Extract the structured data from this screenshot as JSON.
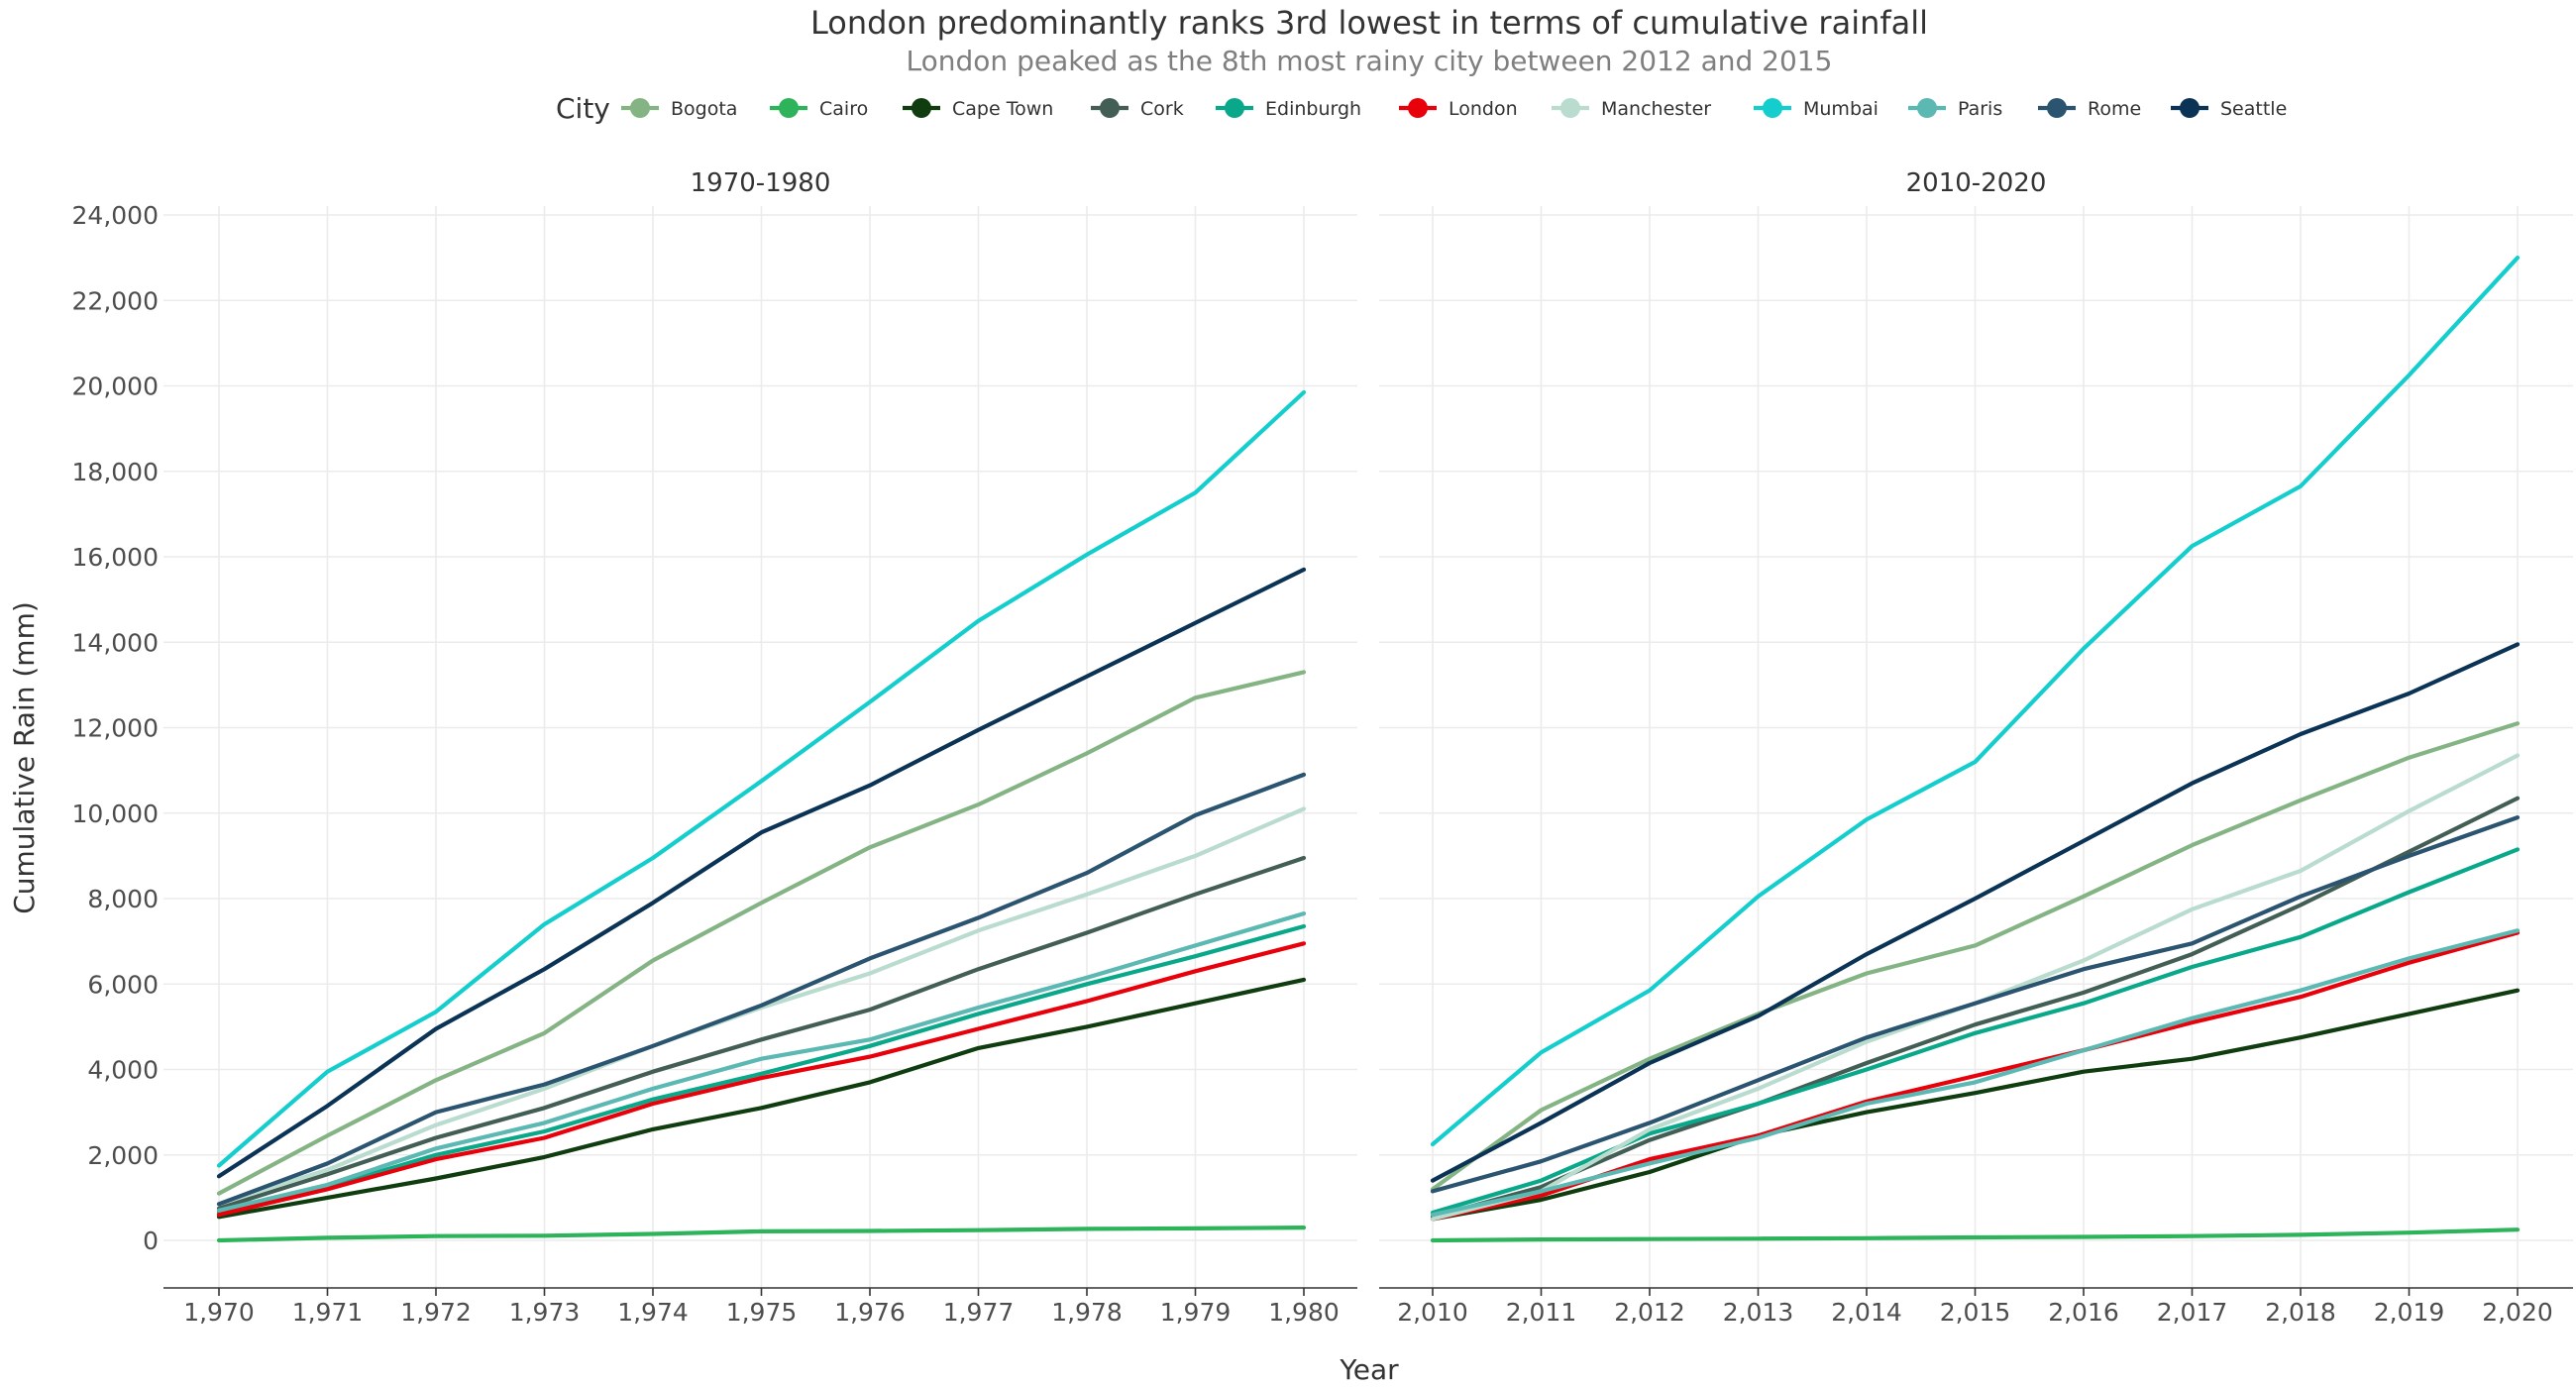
{
  "chart_data": {
    "type": "line",
    "title": "London predominantly ranks 3rd lowest in terms of cumulative rainfall",
    "subtitle": "London peaked as the 8th most rainy city between 2012 and 2015",
    "xlabel": "Year",
    "ylabel": "Cumulative Rain (mm)",
    "ylim": [
      0,
      24000
    ],
    "yticks": [
      "0",
      "2,000",
      "4,000",
      "6,000",
      "8,000",
      "10,000",
      "12,000",
      "14,000",
      "16,000",
      "18,000",
      "20,000",
      "22,000",
      "24,000"
    ],
    "grid": true,
    "legend": {
      "title": "City",
      "position": "top",
      "entries": [
        "Bogota",
        "Cairo",
        "Cape Town",
        "Cork",
        "Edinburgh",
        "London",
        "Manchester",
        "Mumbai",
        "Paris",
        "Rome",
        "Seattle"
      ]
    },
    "colors": {
      "Bogota": "#84b384",
      "Cairo": "#2db35a",
      "Cape Town": "#0f3d0f",
      "Cork": "#435e55",
      "Edinburgh": "#0aa88a",
      "London": "#e8000b",
      "Manchester": "#b9dccf",
      "Mumbai": "#14cece",
      "Paris": "#5bb8b2",
      "Rome": "#2b5470",
      "Seattle": "#0a3355"
    },
    "panels": [
      {
        "label": "1970-1980",
        "x": [
          1970,
          1971,
          1972,
          1973,
          1974,
          1975,
          1976,
          1977,
          1978,
          1979,
          1980
        ],
        "xtick_labels": [
          "1,970",
          "1,971",
          "1,972",
          "1,973",
          "1,974",
          "1,975",
          "1,976",
          "1,977",
          "1,978",
          "1,979",
          "1,980"
        ],
        "series": [
          {
            "name": "Bogota",
            "values": [
              1100,
              2450,
              3750,
              4850,
              6550,
              7900,
              9200,
              10200,
              11400,
              12700,
              13300
            ]
          },
          {
            "name": "Cairo",
            "values": [
              0,
              60,
              100,
              110,
              150,
              210,
              220,
              240,
              270,
              280,
              300
            ]
          },
          {
            "name": "Cape Town",
            "values": [
              550,
              1000,
              1450,
              1950,
              2600,
              3100,
              3700,
              4500,
              5000,
              5550,
              6100
            ]
          },
          {
            "name": "Cork",
            "values": [
              750,
              1550,
              2400,
              3100,
              3950,
              4700,
              5400,
              6350,
              7200,
              8100,
              8950
            ]
          },
          {
            "name": "Edinburgh",
            "values": [
              650,
              1250,
              2000,
              2550,
              3300,
              3900,
              4550,
              5300,
              6000,
              6650,
              7350
            ]
          },
          {
            "name": "London",
            "values": [
              600,
              1200,
              1900,
              2400,
              3200,
              3800,
              4300,
              4950,
              5600,
              6300,
              6950
            ]
          },
          {
            "name": "Manchester",
            "values": [
              850,
              1650,
              2700,
              3550,
              4550,
              5450,
              6250,
              7250,
              8100,
              9000,
              10100
            ]
          },
          {
            "name": "Mumbai",
            "values": [
              1750,
              3950,
              5350,
              7400,
              8950,
              10750,
              12600,
              14500,
              16050,
              17500,
              19850
            ]
          },
          {
            "name": "Paris",
            "values": [
              700,
              1300,
              2150,
              2750,
              3550,
              4250,
              4700,
              5450,
              6150,
              6900,
              7650
            ]
          },
          {
            "name": "Rome",
            "values": [
              850,
              1800,
              3000,
              3650,
              4550,
              5500,
              6600,
              7550,
              8600,
              9950,
              10900
            ]
          },
          {
            "name": "Seattle",
            "values": [
              1500,
              3150,
              4950,
              6350,
              7900,
              9550,
              10650,
              11950,
              13200,
              14450,
              15700
            ]
          }
        ]
      },
      {
        "label": "2010-2020",
        "x": [
          2010,
          2011,
          2012,
          2013,
          2014,
          2015,
          2016,
          2017,
          2018,
          2019,
          2020
        ],
        "xtick_labels": [
          "2,010",
          "2,011",
          "2,012",
          "2,013",
          "2,014",
          "2,015",
          "2,016",
          "2,017",
          "2,018",
          "2,019",
          "2,020"
        ],
        "series": [
          {
            "name": "Bogota",
            "values": [
              1200,
              3050,
              4250,
              5300,
              6250,
              6900,
              8050,
              9250,
              10300,
              11300,
              12100
            ]
          },
          {
            "name": "Cairo",
            "values": [
              0,
              20,
              30,
              40,
              50,
              70,
              80,
              100,
              130,
              180,
              250
            ]
          },
          {
            "name": "Cape Town",
            "values": [
              500,
              950,
              1600,
              2450,
              3000,
              3450,
              3950,
              4250,
              4750,
              5300,
              5850
            ]
          },
          {
            "name": "Cork",
            "values": [
              550,
              1250,
              2350,
              3200,
              4150,
              5050,
              5800,
              6700,
              7850,
              9100,
              10350
            ]
          },
          {
            "name": "Edinburgh",
            "values": [
              650,
              1400,
              2500,
              3200,
              4000,
              4850,
              5550,
              6400,
              7100,
              8150,
              9150
            ]
          },
          {
            "name": "London",
            "values": [
              500,
              1050,
              1900,
              2450,
              3250,
              3850,
              4450,
              5100,
              5700,
              6500,
              7200
            ]
          },
          {
            "name": "Manchester",
            "values": [
              500,
              1150,
              2600,
              3550,
              4650,
              5550,
              6550,
              7750,
              8650,
              10050,
              11350
            ]
          },
          {
            "name": "Mumbai",
            "values": [
              2250,
              4400,
              5850,
              8050,
              9850,
              11200,
              13850,
              16250,
              17650,
              20250,
              23000
            ]
          },
          {
            "name": "Paris",
            "values": [
              600,
              1150,
              1800,
              2400,
              3200,
              3700,
              4450,
              5200,
              5850,
              6600,
              7250
            ]
          },
          {
            "name": "Rome",
            "values": [
              1150,
              1850,
              2750,
              3750,
              4750,
              5550,
              6350,
              6950,
              8050,
              9000,
              9900
            ]
          },
          {
            "name": "Seattle",
            "values": [
              1400,
              2750,
              4150,
              5250,
              6700,
              8000,
              9350,
              10700,
              11850,
              12800,
              13950
            ]
          }
        ]
      }
    ]
  }
}
